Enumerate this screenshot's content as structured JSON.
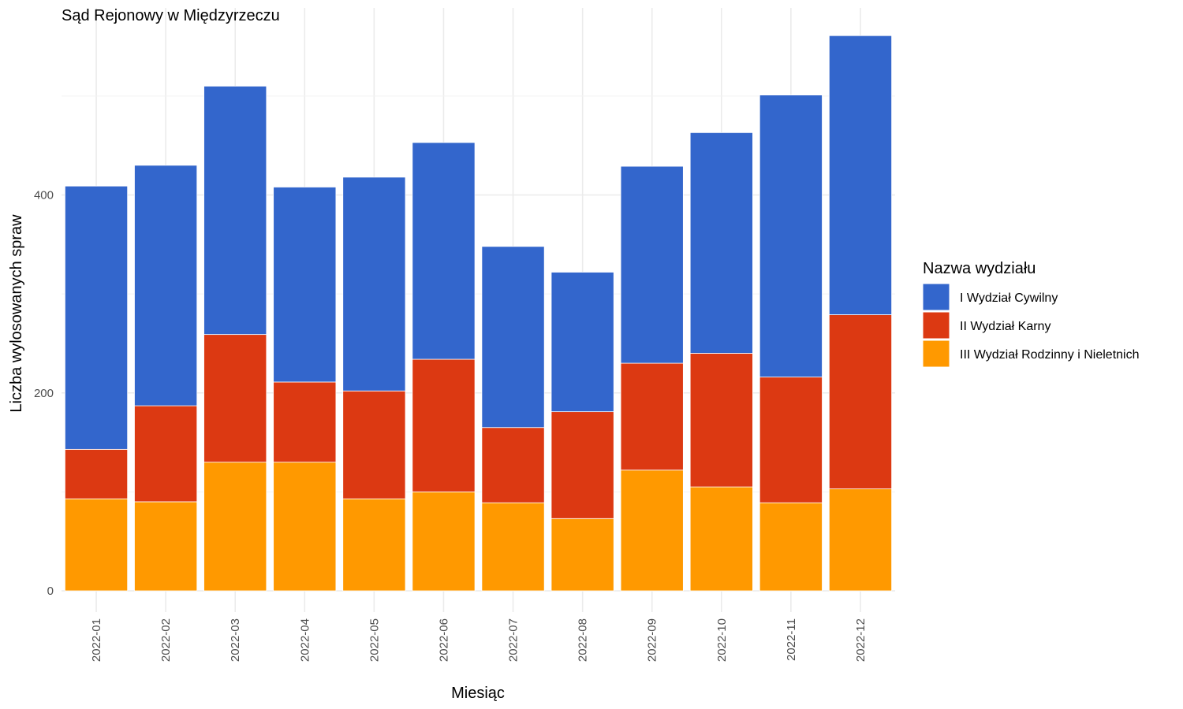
{
  "chart_data": {
    "type": "bar",
    "stacked": true,
    "title": "Sąd Rejonowy w Międzyrzeczu",
    "xlabel": "Miesiąc",
    "ylabel": "Liczba wylosowanych spraw",
    "ylim": [
      0,
      585
    ],
    "yticks": [
      0,
      200,
      400
    ],
    "grid": true,
    "legend": {
      "title": "Nazwa wydziału",
      "placement": "right"
    },
    "categories": [
      "2022-01",
      "2022-02",
      "2022-03",
      "2022-04",
      "2022-05",
      "2022-06",
      "2022-07",
      "2022-08",
      "2022-09",
      "2022-10",
      "2022-11",
      "2022-12"
    ],
    "series": [
      {
        "name": "III Wydział Rodzinny i Nieletnich",
        "color": "#FF9900",
        "values": [
          93,
          90,
          130,
          130,
          93,
          100,
          89,
          73,
          122,
          105,
          89,
          103
        ]
      },
      {
        "name": "II Wydział Karny",
        "color": "#DC3912",
        "values": [
          50,
          97,
          129,
          81,
          109,
          134,
          76,
          108,
          108,
          135,
          127,
          176
        ]
      },
      {
        "name": "I Wydział Cywilny",
        "color": "#3366CC",
        "values": [
          266,
          243,
          251,
          197,
          216,
          219,
          183,
          141,
          199,
          223,
          285,
          282
        ]
      }
    ],
    "legend_order": [
      "I Wydział Cywilny",
      "II Wydział Karny",
      "III Wydział Rodzinny i Nieletnich"
    ]
  }
}
